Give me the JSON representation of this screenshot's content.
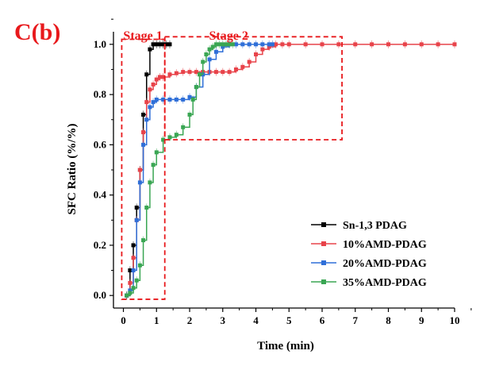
{
  "panel_label": "C(b)",
  "colors": {
    "panel_label": "#e8191c",
    "stage_box": "#e8191c",
    "series": [
      "#000000",
      "#e8434a",
      "#2f6fd8",
      "#3aa653"
    ]
  },
  "chart_data": {
    "type": "line",
    "title": "",
    "xlabel": "Time (min)",
    "ylabel": "SFC Ratio (%/%)",
    "xlim": [
      -0.3,
      10
    ],
    "ylim": [
      -0.05,
      1.05
    ],
    "xticks": [
      "0",
      "1",
      "2",
      "3",
      "4",
      "5",
      "6",
      "7",
      "8",
      "9",
      "10"
    ],
    "yticks": [
      "0.0",
      "0.2",
      "0.4",
      "0.6",
      "0.8",
      "1.0"
    ],
    "legend_position": "lower-right",
    "marker": "square",
    "annotations": [
      {
        "label": "Stage 1",
        "x_range": [
          -0.05,
          1.25
        ],
        "y_range": [
          -0.015,
          1.02
        ]
      },
      {
        "label": "Stage 2",
        "x_range": [
          1.25,
          6.6
        ],
        "y_range": [
          0.62,
          1.03
        ]
      }
    ],
    "series": [
      {
        "name": "Sn-1,3 PDAG",
        "x": [
          0.1,
          0.2,
          0.3,
          0.4,
          0.5,
          0.6,
          0.7,
          0.8,
          0.9,
          1.0,
          1.1,
          1.2,
          1.3,
          1.4
        ],
        "y": [
          0.0,
          0.1,
          0.2,
          0.35,
          0.5,
          0.72,
          0.88,
          0.98,
          1.0,
          1.0,
          1.0,
          1.0,
          1.0,
          1.0
        ]
      },
      {
        "name": "10%AMD-PDAG",
        "x": [
          0.1,
          0.2,
          0.3,
          0.4,
          0.5,
          0.6,
          0.7,
          0.8,
          0.9,
          1.0,
          1.1,
          1.2,
          1.4,
          1.6,
          1.8,
          2.0,
          2.2,
          2.4,
          2.6,
          2.8,
          3.0,
          3.2,
          3.4,
          3.6,
          3.8,
          4.0,
          4.2,
          4.4,
          4.6,
          4.8,
          5.0,
          5.5,
          6.0,
          6.5,
          7.0,
          7.5,
          8.0,
          8.5,
          9.0,
          9.5,
          10.0
        ],
        "y": [
          0.0,
          0.05,
          0.15,
          0.3,
          0.5,
          0.65,
          0.77,
          0.82,
          0.84,
          0.86,
          0.87,
          0.87,
          0.88,
          0.885,
          0.89,
          0.89,
          0.89,
          0.89,
          0.89,
          0.89,
          0.89,
          0.89,
          0.9,
          0.91,
          0.93,
          0.96,
          0.98,
          0.99,
          1.0,
          1.0,
          1.0,
          1.0,
          1.0,
          1.0,
          1.0,
          1.0,
          1.0,
          1.0,
          1.0,
          1.0,
          1.0
        ]
      },
      {
        "name": "20%AMD-PDAG",
        "x": [
          0.1,
          0.2,
          0.3,
          0.4,
          0.5,
          0.6,
          0.7,
          0.8,
          0.9,
          1.0,
          1.2,
          1.4,
          1.6,
          1.8,
          2.0,
          2.2,
          2.4,
          2.6,
          2.8,
          3.0,
          3.2,
          3.4,
          3.6,
          3.8,
          4.0,
          4.2,
          4.4,
          4.5
        ],
        "y": [
          0.0,
          0.02,
          0.1,
          0.3,
          0.45,
          0.6,
          0.7,
          0.75,
          0.77,
          0.78,
          0.78,
          0.78,
          0.78,
          0.78,
          0.79,
          0.83,
          0.88,
          0.94,
          0.97,
          0.99,
          1.0,
          1.0,
          1.0,
          1.0,
          1.0,
          1.0,
          1.0,
          1.0
        ]
      },
      {
        "name": "35%AMD-PDAG",
        "x": [
          0.1,
          0.2,
          0.3,
          0.4,
          0.5,
          0.6,
          0.7,
          0.8,
          0.9,
          1.0,
          1.2,
          1.4,
          1.6,
          1.8,
          2.0,
          2.1,
          2.2,
          2.3,
          2.4,
          2.5,
          2.6,
          2.7,
          2.8,
          2.9,
          3.0,
          3.1,
          3.2,
          3.3
        ],
        "y": [
          0.0,
          0.01,
          0.03,
          0.06,
          0.12,
          0.22,
          0.35,
          0.45,
          0.52,
          0.57,
          0.62,
          0.63,
          0.64,
          0.67,
          0.72,
          0.78,
          0.83,
          0.88,
          0.93,
          0.96,
          0.98,
          0.99,
          1.0,
          1.0,
          1.0,
          1.0,
          1.0,
          1.0
        ]
      }
    ]
  }
}
